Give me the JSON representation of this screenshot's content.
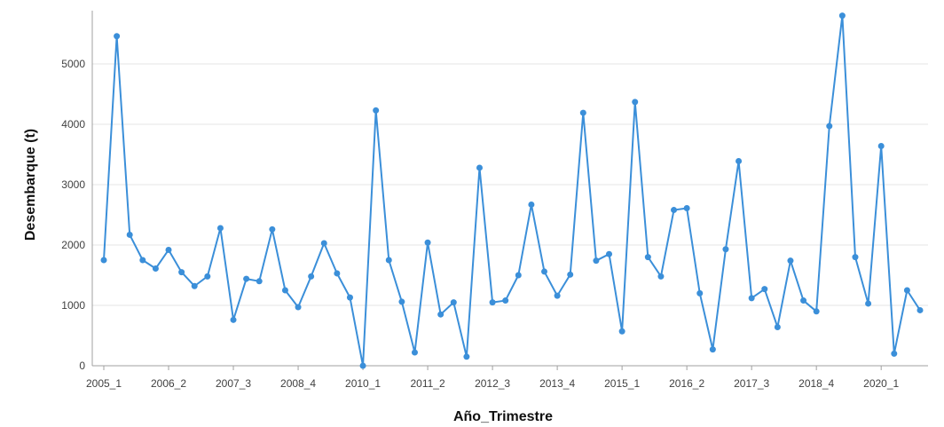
{
  "chart_data": {
    "type": "line",
    "title": "",
    "xlabel": "Año_Trimestre",
    "ylabel": "Desembarque (t)",
    "ylim": [
      0,
      5800
    ],
    "y_ticks": [
      0,
      1000,
      2000,
      3000,
      4000,
      5000
    ],
    "y_tick_labels": [
      "0",
      "1000",
      "2000",
      "3000",
      "4000",
      "5000"
    ],
    "x_tick_labels": [
      "2005_1",
      "2006_2",
      "2007_3",
      "2008_4",
      "2010_1",
      "2011_2",
      "2012_3",
      "2013_4",
      "2015_1",
      "2016_2",
      "2017_3",
      "2018_4",
      "2020_1"
    ],
    "x_tick_indices": [
      0,
      5,
      10,
      15,
      20,
      25,
      30,
      35,
      40,
      45,
      50,
      55,
      60
    ],
    "grid": "horizontal",
    "legend": "none",
    "series": [
      {
        "color": "#3b8fd9",
        "values": [
          1750,
          5460,
          2170,
          1750,
          1610,
          1920,
          1550,
          1320,
          1480,
          2280,
          760,
          1440,
          1400,
          2260,
          1250,
          970,
          1480,
          2030,
          1530,
          1130,
          0,
          4230,
          1750,
          1060,
          220,
          2040,
          850,
          1050,
          150,
          3280,
          1050,
          1080,
          1500,
          2670,
          1560,
          1160,
          1510,
          4190,
          1740,
          1850,
          570,
          4370,
          1800,
          1480,
          2580,
          2610,
          1200,
          270,
          1930,
          3390,
          1120,
          1270,
          640,
          1740,
          1080,
          900,
          3970,
          5800,
          1800,
          1030,
          3640,
          200,
          1250,
          920
        ]
      }
    ]
  }
}
